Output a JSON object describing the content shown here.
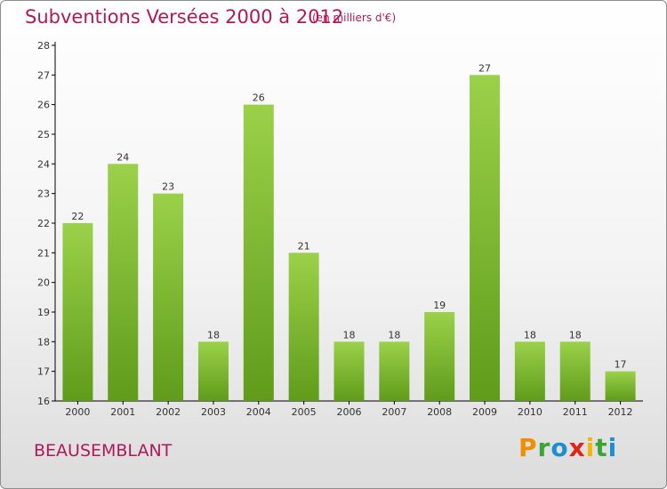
{
  "header": {
    "title": "Subventions Versées 2000 à 2012",
    "unit": "(en milliers d'€)"
  },
  "footer": {
    "commune": "BEAUSEMBLANT",
    "logo_letters": [
      "P",
      "r",
      "o",
      "x",
      "i",
      "t",
      "i"
    ],
    "logo_colors": [
      "#f28c00",
      "#3aa535",
      "#1c8fd2",
      "#e2231a",
      "#f6b600",
      "#3aa535",
      "#1c8fd2"
    ]
  },
  "colors": {
    "title": "#b0185a",
    "bar_top": "#9bd14a",
    "bar_bottom": "#5f9c1a",
    "axis": "#000000"
  },
  "chart_data": {
    "type": "bar",
    "title": "Subventions Versées 2000 à 2012",
    "subtitle": "(en milliers d'€)",
    "categories": [
      "2000",
      "2001",
      "2002",
      "2003",
      "2004",
      "2005",
      "2006",
      "2007",
      "2008",
      "2009",
      "2010",
      "2011",
      "2012"
    ],
    "values": [
      22,
      24,
      23,
      18,
      26,
      21,
      18,
      18,
      19,
      27,
      18,
      18,
      17
    ],
    "ylim": [
      16,
      28
    ],
    "yticks": [
      16,
      17,
      18,
      19,
      20,
      21,
      22,
      23,
      24,
      25,
      26,
      27,
      28
    ],
    "grid": false,
    "data_labels": true
  }
}
